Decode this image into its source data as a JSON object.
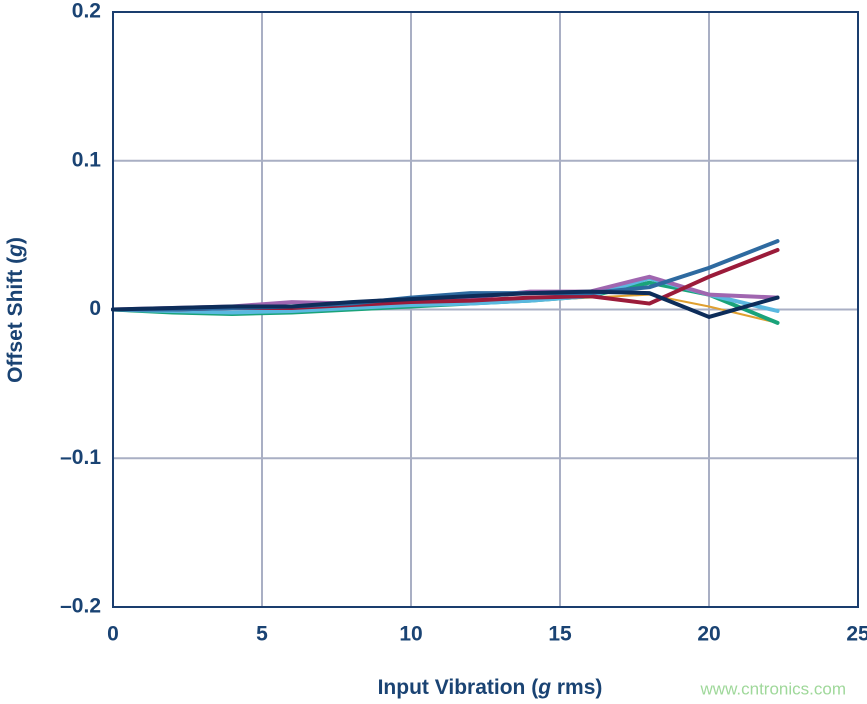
{
  "chart_data": {
    "type": "line",
    "xlabel": [
      "Input Vibration (",
      "g",
      " rms)"
    ],
    "ylabel": [
      "Offset Shift (",
      "g",
      ")"
    ],
    "watermark": "www.cntronics.com",
    "x": [
      0,
      2,
      4,
      6,
      8,
      10,
      12,
      14,
      16,
      18,
      20,
      22.3
    ],
    "series": [
      {
        "color": "#e0a030",
        "values": [
          0,
          -0.001,
          -0.002,
          -0.002,
          0,
          0.002,
          0.004,
          0.006,
          0.008,
          0.01,
          0.002,
          -0.009
        ]
      },
      {
        "color": "#1aa37a",
        "values": [
          0,
          -0.002,
          -0.003,
          -0.002,
          0,
          0.002,
          0.004,
          0.006,
          0.009,
          0.018,
          0.01,
          -0.009
        ]
      },
      {
        "color": "#5ab8e0",
        "values": [
          0,
          -0.001,
          -0.002,
          -0.001,
          0.001,
          0.003,
          0.004,
          0.006,
          0.009,
          0.021,
          0.01,
          -0.001
        ]
      },
      {
        "color": "#a066b0",
        "values": [
          0,
          0.001,
          0.002,
          0.005,
          0.004,
          0.006,
          0.008,
          0.012,
          0.012,
          0.022,
          0.01,
          0.008
        ]
      },
      {
        "color": "#9b1b3a",
        "values": [
          0,
          0,
          0.001,
          0.001,
          0.003,
          0.005,
          0.006,
          0.008,
          0.009,
          0.004,
          0.022,
          0.04
        ]
      },
      {
        "color": "#2e6aa0",
        "values": [
          0,
          0,
          0.001,
          0.002,
          0.004,
          0.008,
          0.011,
          0.011,
          0.011,
          0.015,
          0.028,
          0.046
        ]
      },
      {
        "color": "#0d2d5a",
        "values": [
          0,
          0.001,
          0.002,
          0.002,
          0.005,
          0.007,
          0.009,
          0.011,
          0.012,
          0.011,
          -0.005,
          0.008
        ]
      }
    ],
    "xlim": [
      0,
      25
    ],
    "xticks": [
      0,
      5,
      10,
      15,
      20,
      25
    ],
    "ylim": [
      -0.2,
      0.2
    ],
    "yticks": [
      {
        "value": -0.2,
        "label": "–0.2"
      },
      {
        "value": -0.1,
        "label": "–0.1"
      },
      0,
      0.1,
      0.2
    ],
    "grid": true
  }
}
